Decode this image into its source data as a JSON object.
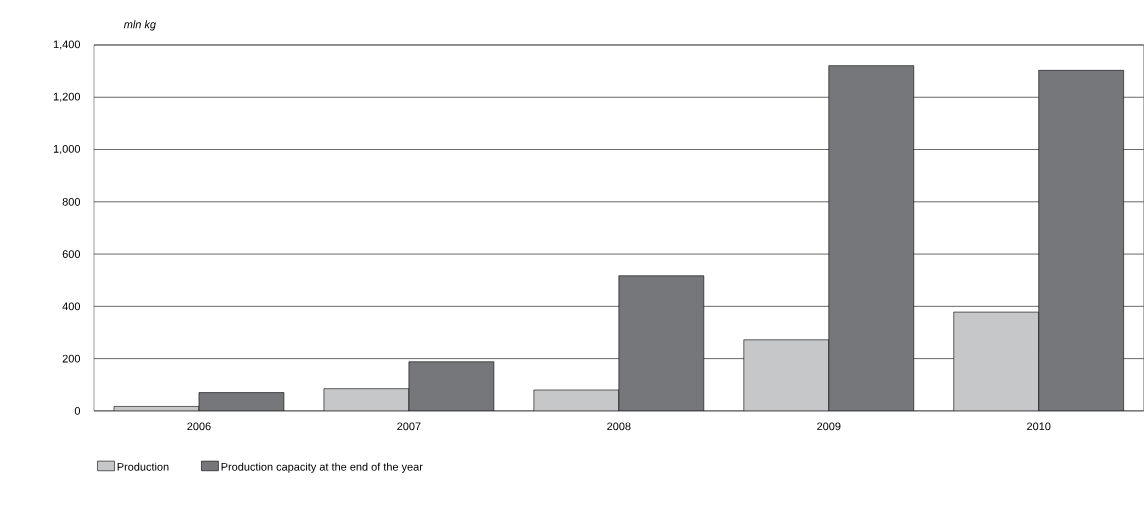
{
  "chart_data": {
    "type": "bar",
    "ylabel": "mln kg",
    "categories": [
      "2006",
      "2007",
      "2008",
      "2009",
      "2010"
    ],
    "series": [
      {
        "name": "Production",
        "color": "#c6c7c9",
        "values": [
          17,
          85,
          80,
          272,
          378
        ]
      },
      {
        "name": "Production capacity at the end of the year",
        "color": "#76777b",
        "values": [
          70,
          188,
          517,
          1321,
          1303
        ]
      }
    ],
    "ylim": [
      0,
      1400
    ],
    "yticks": [
      0,
      200,
      400,
      600,
      800,
      {
        "value": 1000,
        "label": "1,000"
      },
      {
        "value": 1200,
        "label": "1,200"
      },
      {
        "value": 1400,
        "label": "1,400"
      }
    ],
    "grid": "y",
    "legend": "bottom"
  }
}
